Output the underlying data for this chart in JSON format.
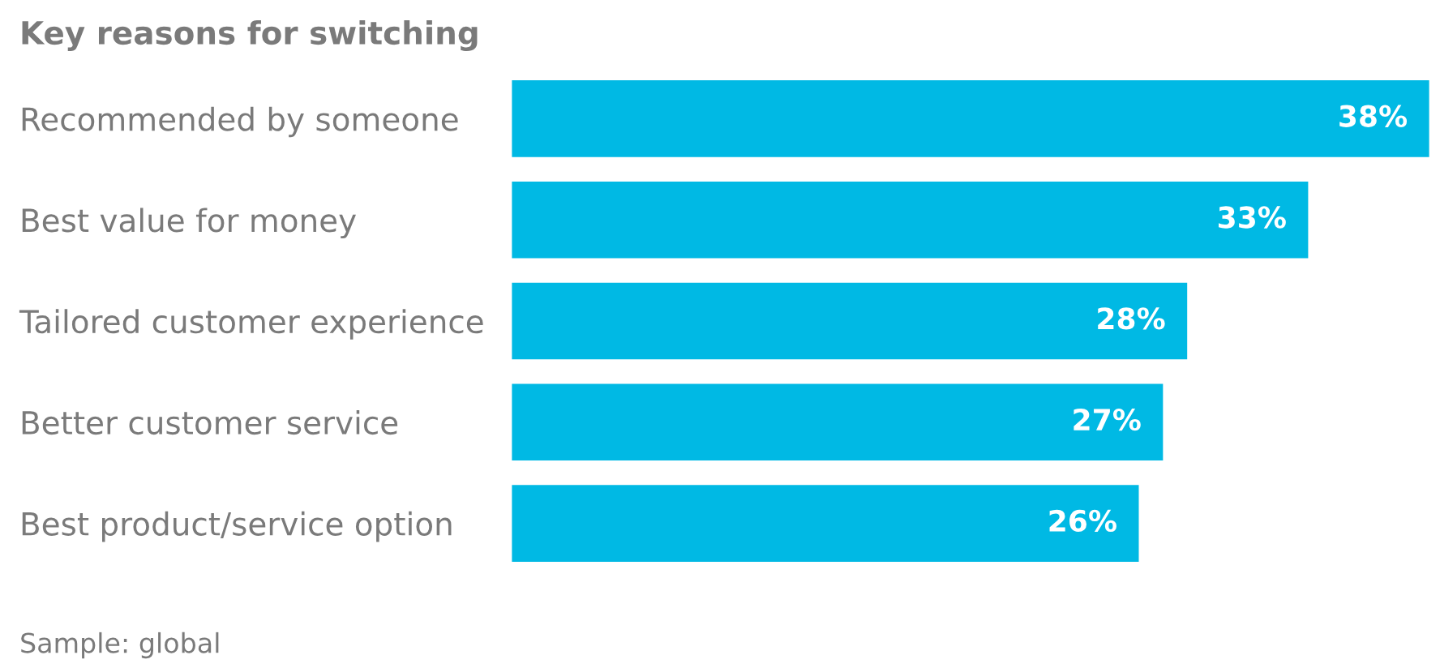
{
  "chart_data": {
    "type": "bar",
    "orientation": "horizontal",
    "title": "Key reasons for switching",
    "categories": [
      "Recommended by someone",
      "Best value for money",
      "Tailored customer experience",
      "Better customer service",
      "Best product/service option"
    ],
    "values": [
      38,
      33,
      28,
      27,
      26
    ],
    "value_labels": [
      "38%",
      "33%",
      "28%",
      "27%",
      "26%"
    ],
    "color": "#00b9e4",
    "annotations": [
      "Sample: global"
    ],
    "grid": false,
    "legend": false
  }
}
